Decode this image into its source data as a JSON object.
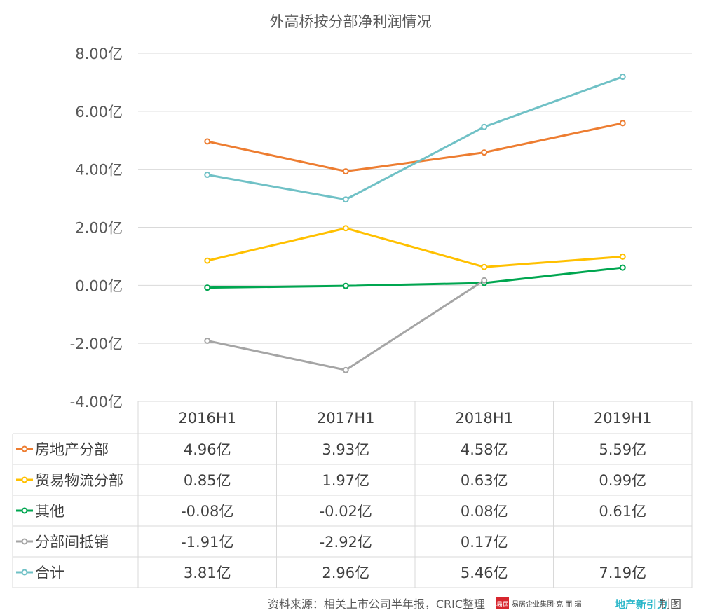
{
  "chart_data": {
    "type": "line",
    "title": "外高桥按分部净利润情况",
    "categories": [
      "2016H1",
      "2017H1",
      "2018H1",
      "2019H1"
    ],
    "ylim": [
      -4,
      8
    ],
    "yticks": [
      "-4.00亿",
      "-2.00亿",
      "0.00亿",
      "2.00亿",
      "4.00亿",
      "6.00亿",
      "8.00亿"
    ],
    "grid": true,
    "legend": "data table",
    "series": [
      {
        "name": "房地产分部",
        "color": "#ED7D31",
        "values": [
          4.96,
          3.93,
          4.58,
          5.59
        ],
        "labels": [
          "4.96亿",
          "3.93亿",
          "4.58亿",
          "5.59亿"
        ]
      },
      {
        "name": "贸易物流分部",
        "color": "#FFC000",
        "values": [
          0.85,
          1.97,
          0.63,
          0.99
        ],
        "labels": [
          "0.85亿",
          "1.97亿",
          "0.63亿",
          "0.99亿"
        ]
      },
      {
        "name": "其他",
        "color": "#00A650",
        "values": [
          -0.08,
          -0.02,
          0.08,
          0.61
        ],
        "labels": [
          "-0.08亿",
          "-0.02亿",
          "0.08亿",
          "0.61亿"
        ]
      },
      {
        "name": "分部间抵销",
        "color": "#A5A5A5",
        "values": [
          -1.91,
          -2.92,
          0.17,
          null
        ],
        "labels": [
          "-1.91亿",
          "-2.92亿",
          "0.17亿",
          ""
        ]
      },
      {
        "name": "合计",
        "color": "#70C1C6",
        "values": [
          3.81,
          2.96,
          5.46,
          7.19
        ],
        "labels": [
          "3.81亿",
          "2.96亿",
          "5.46亿",
          "7.19亿"
        ]
      }
    ]
  },
  "footer": {
    "source": "资料来源：相关上市公司半年报，CRIC整理",
    "logo_badge": "易居",
    "logo_text": "易居企业集团·克 而 瑞",
    "brand": "地产新引力",
    "suffix": "制图"
  }
}
